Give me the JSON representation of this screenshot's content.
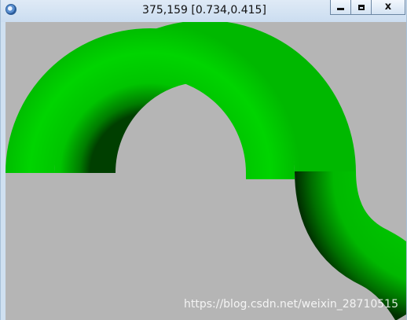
{
  "window": {
    "title": "375,159 [0.734,0.415]",
    "icon": "app-globe-icon",
    "buttons": {
      "minimize": "minimize-icon",
      "maximize": "maximize-icon",
      "close_label": "x"
    }
  },
  "scene": {
    "background_color": "#b5b5b5",
    "tube_color": "#00d000",
    "tube_shadow_color": "#004000"
  },
  "watermark": "https://blog.csdn.net/weixin_28710515"
}
